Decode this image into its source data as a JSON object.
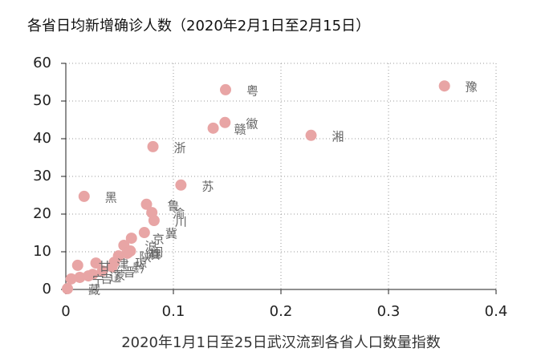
{
  "chart_data": {
    "type": "scatter",
    "title": "各省日均新增确诊人数（2020年2月1日至2月15日）",
    "xlabel": "2020年1月1日至25日武汉流到各省人口数量指数",
    "color": "#e8a5a5",
    "labels": [
      "豫",
      "粤",
      "徽",
      "赣",
      "湘",
      "浙",
      "苏",
      "黑",
      "鲁",
      "渝",
      "川",
      "冀",
      "京",
      "沪",
      "桂",
      "闽",
      "陕",
      "琼",
      "滇",
      "津",
      "晋",
      "蒙",
      "辽",
      "黔",
      "吉",
      "甘",
      "宁",
      "藏"
    ],
    "x": [
      0.352,
      0.1485,
      0.148,
      0.137,
      0.228,
      0.081,
      0.107,
      0.017,
      0.075,
      0.08,
      0.082,
      0.073,
      0.061,
      0.054,
      0.058,
      0.06,
      0.049,
      0.045,
      0.057,
      0.028,
      0.034,
      0.025,
      0.021,
      0.043,
      0.013,
      0.011,
      0.005,
      0.0015
    ],
    "values": [
      54.0,
      53.0,
      44.3,
      42.8,
      40.9,
      37.9,
      27.7,
      24.7,
      22.6,
      20.4,
      18.3,
      15.1,
      13.6,
      11.7,
      9.8,
      10.2,
      8.9,
      7.2,
      9.6,
      7.0,
      4.9,
      4.0,
      3.6,
      6.0,
      3.2,
      6.4,
      2.8,
      0.2
    ],
    "xlim": [
      0,
      0.4
    ],
    "ylim": [
      0,
      60
    ],
    "xticks": [
      0,
      0.1,
      0.2,
      0.3,
      0.4
    ],
    "yticks": [
      0,
      10,
      20,
      30,
      40,
      50,
      60
    ],
    "grid": true
  }
}
